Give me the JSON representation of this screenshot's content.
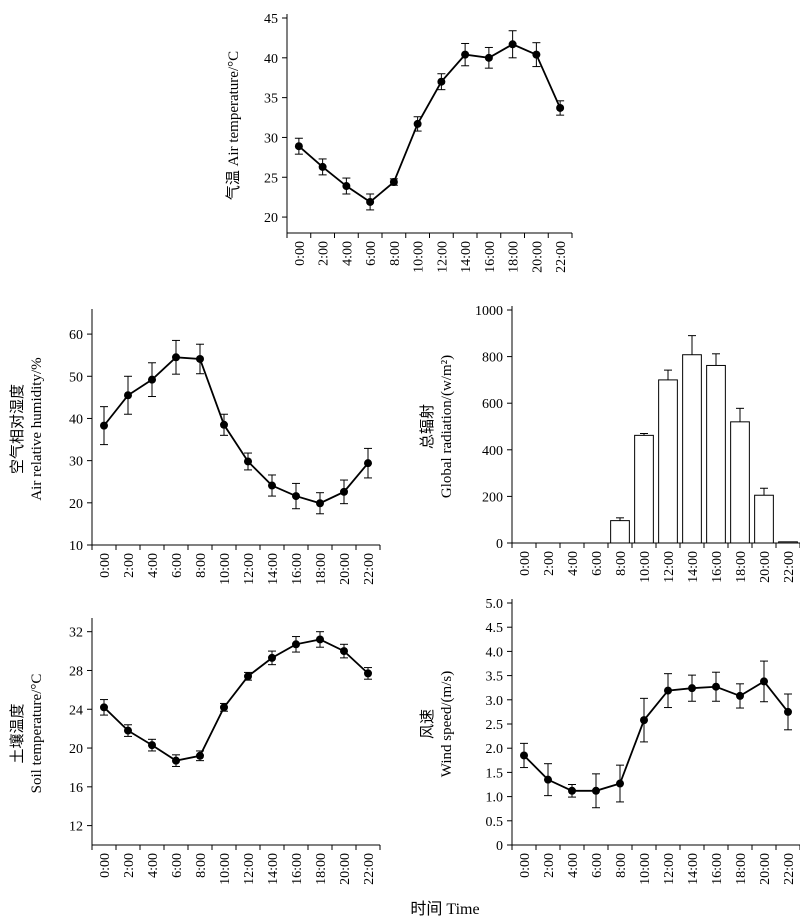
{
  "figure": {
    "shared_xlabel": "时间 Time",
    "categories": [
      "0:00",
      "2:00",
      "4:00",
      "6:00",
      "8:00",
      "10:00",
      "12:00",
      "14:00",
      "16:00",
      "18:00",
      "20:00",
      "22:00"
    ]
  },
  "chart_data": [
    {
      "id": "air-temperature",
      "type": "line",
      "title": "",
      "ylabel": [
        "气温  Air temperature/°C"
      ],
      "categories": [
        "0:00",
        "2:00",
        "4:00",
        "6:00",
        "8:00",
        "10:00",
        "12:00",
        "14:00",
        "16:00",
        "18:00",
        "20:00",
        "22:00"
      ],
      "values": [
        28.9,
        26.3,
        23.9,
        21.9,
        24.4,
        31.7,
        37.0,
        40.4,
        40.0,
        41.7,
        40.4,
        33.7
      ],
      "errors": [
        1.0,
        1.0,
        1.0,
        1.0,
        0.4,
        0.9,
        1.0,
        1.4,
        1.3,
        1.7,
        1.5,
        0.9
      ],
      "ylim": [
        18,
        45
      ],
      "yticks": [
        20,
        25,
        30,
        35,
        40,
        45
      ],
      "tick_labels": [
        "20",
        "25",
        "30",
        "35",
        "40",
        "45"
      ]
    },
    {
      "id": "air-relative-humidity",
      "type": "line",
      "title": "",
      "ylabel": [
        "空气相对湿度",
        "Air relative humidity/%"
      ],
      "categories": [
        "0:00",
        "2:00",
        "4:00",
        "6:00",
        "8:00",
        "10:00",
        "12:00",
        "14:00",
        "16:00",
        "18:00",
        "20:00",
        "22:00"
      ],
      "values": [
        38.3,
        45.5,
        49.2,
        54.5,
        54.1,
        38.5,
        29.8,
        24.1,
        21.6,
        19.9,
        22.6,
        29.4
      ],
      "errors": [
        4.5,
        4.5,
        4.0,
        4.0,
        3.5,
        2.5,
        2.0,
        2.5,
        3.0,
        2.5,
        2.8,
        3.5
      ],
      "ylim": [
        10,
        65
      ],
      "yticks": [
        10,
        20,
        30,
        40,
        50,
        60
      ],
      "tick_labels": [
        "10",
        "20",
        "30",
        "40",
        "50",
        "60"
      ]
    },
    {
      "id": "global-radiation",
      "type": "bar",
      "title": "",
      "ylabel": [
        "总辐射",
        "Global radiation/(w/m²)"
      ],
      "categories": [
        "0:00",
        "2:00",
        "4:00",
        "6:00",
        "8:00",
        "10:00",
        "12:00",
        "14:00",
        "16:00",
        "18:00",
        "20:00",
        "22:00"
      ],
      "values": [
        0,
        0,
        0,
        0,
        96,
        462,
        700,
        808,
        762,
        520,
        205,
        5
      ],
      "errors": [
        0,
        0,
        0,
        0,
        12,
        8,
        42,
        82,
        50,
        58,
        30,
        0
      ],
      "ylim": [
        0,
        1000
      ],
      "yticks": [
        0,
        200,
        400,
        600,
        800,
        1000
      ],
      "tick_labels": [
        "0",
        "200",
        "400",
        "600",
        "800",
        "1000"
      ]
    },
    {
      "id": "soil-temperature",
      "type": "line",
      "title": "",
      "ylabel": [
        "土壤温度",
        "Soil temperature/°C"
      ],
      "categories": [
        "0:00",
        "2:00",
        "4:00",
        "6:00",
        "8:00",
        "10:00",
        "12:00",
        "14:00",
        "16:00",
        "18:00",
        "20:00",
        "22:00"
      ],
      "values": [
        24.2,
        21.8,
        20.3,
        18.7,
        19.2,
        24.2,
        27.4,
        29.3,
        30.7,
        31.2,
        30.0,
        27.7
      ],
      "errors": [
        0.8,
        0.6,
        0.6,
        0.6,
        0.5,
        0.4,
        0.4,
        0.7,
        0.8,
        0.8,
        0.7,
        0.6
      ],
      "ylim": [
        10,
        33
      ],
      "yticks": [
        12,
        16,
        20,
        24,
        28,
        32
      ],
      "tick_labels": [
        "12",
        "16",
        "20",
        "24",
        "28",
        "32"
      ]
    },
    {
      "id": "wind-speed",
      "type": "line",
      "title": "",
      "ylabel": [
        "风速",
        "Wind speed/(m/s)"
      ],
      "categories": [
        "0:00",
        "2:00",
        "4:00",
        "6:00",
        "8:00",
        "10:00",
        "12:00",
        "14:00",
        "16:00",
        "18:00",
        "20:00",
        "22:00"
      ],
      "values": [
        1.85,
        1.35,
        1.12,
        1.12,
        1.27,
        2.58,
        3.19,
        3.24,
        3.27,
        3.08,
        3.38,
        2.75
      ],
      "errors": [
        0.25,
        0.33,
        0.13,
        0.35,
        0.38,
        0.45,
        0.35,
        0.27,
        0.3,
        0.25,
        0.42,
        0.37
      ],
      "ylim": [
        0,
        5
      ],
      "yticks": [
        0,
        0.5,
        1.0,
        1.5,
        2.0,
        2.5,
        3.0,
        3.5,
        4.0,
        4.5,
        5.0
      ],
      "tick_labels": [
        "0",
        "0.5",
        "1.0",
        "1.5",
        "2.0",
        "2.5",
        "3.0",
        "3.5",
        "4.0",
        "4.5",
        "5.0"
      ]
    }
  ]
}
